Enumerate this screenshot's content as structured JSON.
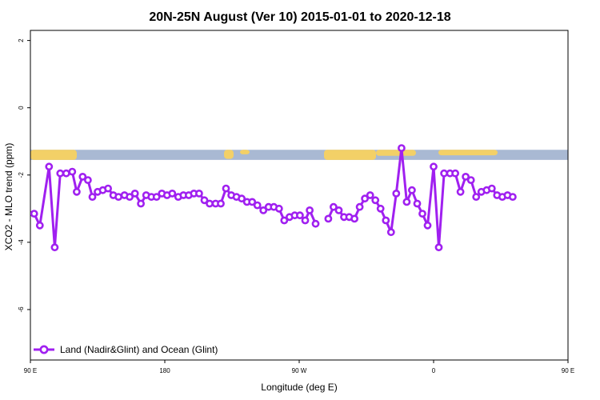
{
  "chart_data": {
    "type": "line",
    "title": "20N-25N August (Ver 10)   2015-01-01 to 2020-12-18",
    "xlabel": "Longitude (deg E)",
    "ylabel": "XCO2 - MLO trend (ppm)",
    "xlim": [
      90,
      450
    ],
    "ylim": [
      -7.5,
      2.3
    ],
    "xticks": [
      {
        "value": 90,
        "label": "90 E"
      },
      {
        "value": 180,
        "label": "180"
      },
      {
        "value": 270,
        "label": "90 W"
      },
      {
        "value": 360,
        "label": "0"
      },
      {
        "value": 450,
        "label": "90 E"
      },
      {
        "value": 540,
        "label": "180"
      }
    ],
    "yticks": [
      {
        "value": 2,
        "label": "2"
      },
      {
        "value": 0,
        "label": "0"
      },
      {
        "value": -2,
        "label": "-2"
      },
      {
        "value": -4,
        "label": "-4"
      },
      {
        "value": -6,
        "label": "-6"
      }
    ],
    "map_strip": {
      "ymin": -1.55,
      "ymax": -1.25,
      "ocean_color": "#a9b9d3",
      "land_color": "#f3d067"
    },
    "legend": {
      "placement": "bottom-left"
    },
    "series": [
      {
        "name": "Land (Nadir&Glint) and Ocean (Glint)",
        "color": "#a020f0",
        "segments": [
          [
            [
              92.5,
              -3.15
            ],
            [
              96.3,
              -3.5
            ],
            [
              102.5,
              -1.75
            ],
            [
              106.3,
              -4.15
            ],
            [
              110,
              -1.95
            ],
            [
              114,
              -1.95
            ],
            [
              118,
              -1.9
            ],
            [
              121,
              -2.5
            ],
            [
              125,
              -2.05
            ],
            [
              128.5,
              -2.15
            ],
            [
              131.5,
              -2.65
            ],
            [
              135,
              -2.5
            ],
            [
              138.5,
              -2.45
            ],
            [
              142,
              -2.4
            ],
            [
              145.5,
              -2.6
            ],
            [
              149,
              -2.65
            ],
            [
              153,
              -2.6
            ],
            [
              156.5,
              -2.65
            ],
            [
              160,
              -2.55
            ],
            [
              164,
              -2.85
            ],
            [
              167.5,
              -2.6
            ],
            [
              171,
              -2.65
            ],
            [
              174.5,
              -2.65
            ],
            [
              178,
              -2.55
            ],
            [
              181.5,
              -2.6
            ],
            [
              185,
              -2.55
            ],
            [
              189,
              -2.65
            ],
            [
              192.5,
              -2.6
            ],
            [
              196,
              -2.6
            ],
            [
              199.5,
              -2.55
            ],
            [
              203,
              -2.55
            ],
            [
              206.5,
              -2.75
            ],
            [
              210,
              -2.85
            ],
            [
              214,
              -2.85
            ],
            [
              217.5,
              -2.85
            ],
            [
              221,
              -2.4
            ],
            [
              224.5,
              -2.6
            ],
            [
              228,
              -2.65
            ],
            [
              231.5,
              -2.7
            ],
            [
              235,
              -2.8
            ],
            [
              238.5,
              -2.8
            ],
            [
              242,
              -2.9
            ],
            [
              246,
              -3.05
            ],
            [
              249.5,
              -2.95
            ],
            [
              253,
              -2.95
            ],
            [
              256.5,
              -3.0
            ],
            [
              260,
              -3.35
            ],
            [
              263.5,
              -3.25
            ],
            [
              267,
              -3.2
            ],
            [
              270.5,
              -3.2
            ],
            [
              274,
              -3.35
            ],
            [
              277,
              -3.05
            ],
            [
              281,
              -3.45
            ]
          ],
          [
            [
              289.5,
              -3.3
            ],
            [
              293,
              -2.95
            ],
            [
              296.5,
              -3.05
            ],
            [
              300,
              -3.25
            ],
            [
              303.5,
              -3.25
            ],
            [
              307,
              -3.3
            ],
            [
              310.5,
              -2.95
            ],
            [
              314,
              -2.7
            ],
            [
              317.5,
              -2.6
            ],
            [
              321,
              -2.75
            ],
            [
              324.5,
              -3.0
            ],
            [
              328,
              -3.35
            ],
            [
              331.5,
              -3.7
            ],
            [
              335,
              -2.55
            ],
            [
              338.5,
              -1.2
            ],
            [
              342,
              -2.8
            ],
            [
              345.5,
              -2.45
            ],
            [
              349,
              -2.85
            ],
            [
              352.5,
              -3.15
            ],
            [
              356,
              -3.5
            ],
            [
              360,
              -1.75
            ],
            [
              363.5,
              -4.15
            ],
            [
              367,
              -1.95
            ],
            [
              371,
              -1.95
            ],
            [
              374.5,
              -1.95
            ],
            [
              378,
              -2.5
            ],
            [
              381.5,
              -2.05
            ],
            [
              385,
              -2.15
            ],
            [
              388.5,
              -2.65
            ],
            [
              392,
              -2.5
            ],
            [
              395.5,
              -2.45
            ],
            [
              399,
              -2.4
            ],
            [
              402.5,
              -2.6
            ],
            [
              406,
              -2.65
            ],
            [
              409.5,
              -2.6
            ],
            [
              413,
              -2.65
            ]
          ]
        ]
      }
    ]
  }
}
